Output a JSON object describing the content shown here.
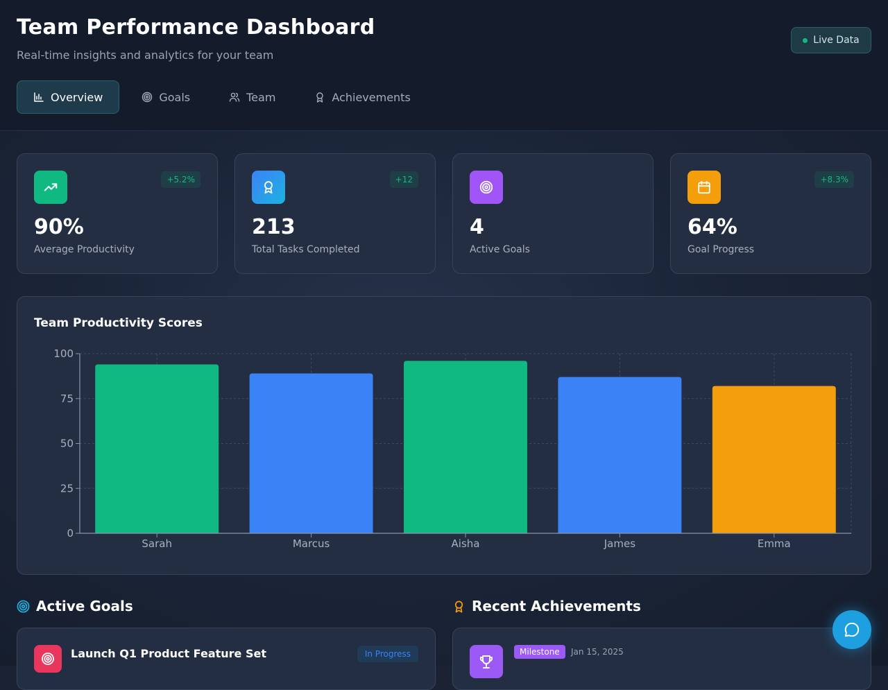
{
  "header": {
    "title": "Team Performance Dashboard",
    "subtitle": "Real-time insights and analytics for your team",
    "live_badge": "Live Data"
  },
  "tabs": [
    {
      "label": "Overview",
      "icon": "bar-chart-icon",
      "active": true
    },
    {
      "label": "Goals",
      "icon": "target-icon",
      "active": false
    },
    {
      "label": "Team",
      "icon": "users-icon",
      "active": false
    },
    {
      "label": "Achievements",
      "icon": "award-icon",
      "active": false
    }
  ],
  "stats": [
    {
      "value": "90%",
      "label": "Average Productivity",
      "change": "+5.2%",
      "icon": "trending-up-icon",
      "color": "#10b981"
    },
    {
      "value": "213",
      "label": "Total Tasks Completed",
      "change": "+12",
      "icon": "award-icon",
      "color": "#1e9fe0"
    },
    {
      "value": "4",
      "label": "Active Goals",
      "change": "",
      "icon": "target-icon",
      "color": "#a155f7"
    },
    {
      "value": "64%",
      "label": "Goal Progress",
      "change": "+8.3%",
      "icon": "calendar-icon",
      "color": "#f59e0b"
    }
  ],
  "chart": {
    "title": "Team Productivity Scores"
  },
  "chart_data": {
    "type": "bar",
    "title": "Team Productivity Scores",
    "categories": [
      "Sarah",
      "Marcus",
      "Aisha",
      "James",
      "Emma"
    ],
    "values": [
      94,
      89,
      96,
      87,
      82
    ],
    "colors": [
      "#10b981",
      "#3b82f6",
      "#10b981",
      "#3b82f6",
      "#f59e0b"
    ],
    "ylim": [
      0,
      100
    ],
    "yticks": [
      0,
      25,
      50,
      75,
      100
    ],
    "grid": true,
    "xlabel": "",
    "ylabel": ""
  },
  "goals_section": {
    "title": "Active Goals",
    "first_goal": {
      "title": "Launch Q1 Product Feature Set",
      "status": "In Progress"
    }
  },
  "achievements_section": {
    "title": "Recent Achievements",
    "first_achievement": {
      "badge": "Milestone",
      "date": "Jan 15, 2025"
    }
  }
}
